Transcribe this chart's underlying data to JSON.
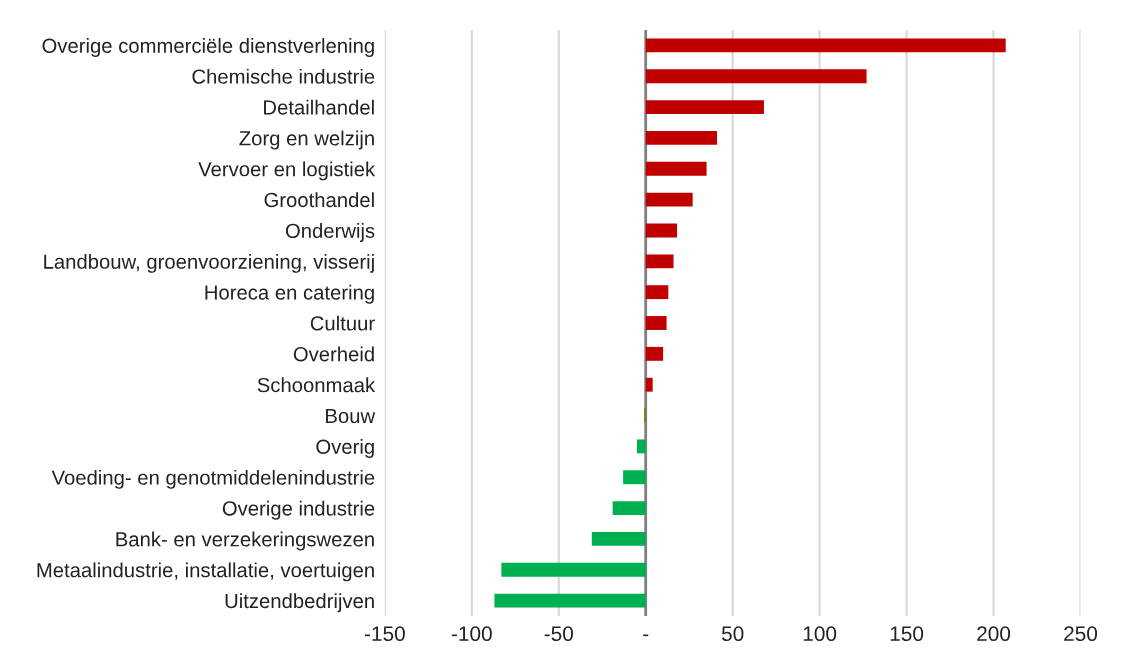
{
  "chart_data": {
    "type": "bar",
    "orientation": "horizontal",
    "categories": [
      "Overige commerciële dienstverlening",
      "Chemische industrie",
      "Detailhandel",
      "Zorg en welzijn",
      "Vervoer en logistiek",
      "Groothandel",
      "Onderwijs",
      "Landbouw, groenvoorziening, visserij",
      "Horeca en catering",
      "Cultuur",
      "Overheid",
      "Schoonmaak",
      "Bouw",
      "Overig",
      "Voeding- en genotmiddelenindustrie",
      "Overige industrie",
      "Bank- en verzekeringswezen",
      "Metaalindustrie, installatie, voertuigen",
      "Uitzendbedrijven"
    ],
    "values": [
      207,
      127,
      68,
      41,
      35,
      27,
      18,
      16,
      13,
      12,
      10,
      4,
      -1,
      -5,
      -13,
      -19,
      -31,
      -83,
      -87
    ],
    "colors": [
      "#c00000",
      "#c00000",
      "#c00000",
      "#c00000",
      "#c00000",
      "#c00000",
      "#c00000",
      "#c00000",
      "#c00000",
      "#c00000",
      "#c00000",
      "#c00000",
      "#7f7f00",
      "#00b050",
      "#00b050",
      "#00b050",
      "#00b050",
      "#00b050",
      "#00b050"
    ],
    "xlim": [
      -150,
      250
    ],
    "xticks": [
      -150,
      -100,
      -50,
      {
        "value": 0,
        "label": "-"
      },
      50,
      100,
      150,
      200,
      250
    ],
    "grid": "x",
    "legend": false
  }
}
